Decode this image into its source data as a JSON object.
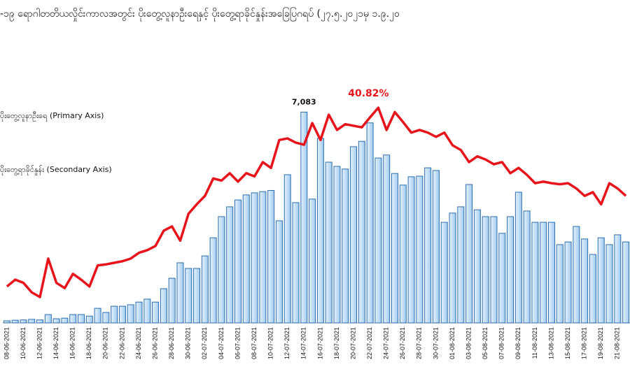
{
  "chart_data": {
    "type": "bar-line",
    "title": "-၁၉ ရောဂါတတိယလှိုင်းကာလအတွင်း ပိုးတွေ့လူနာဦးရေနှင့် ပိုးတွေ့ရာခိုင်နှုန်းအခြေပြဂရပ် (၂၇.၅.၂၀၂၁မှ ၁.၉.၂၀",
    "categories": [
      "08-06-2021",
      null,
      "10-06-2021",
      null,
      "12-06-2021",
      null,
      "14-06-2021",
      null,
      "16-06-2021",
      null,
      "18-06-2021",
      null,
      "20-06-2021",
      null,
      "22-06-2021",
      null,
      "24-06-2021",
      null,
      "26-06-2021",
      null,
      "28-06-2021",
      null,
      "30-06-2021",
      null,
      "02-07-2021",
      null,
      "04-07-2021",
      null,
      "06-07-2021",
      null,
      "08-07-2021",
      null,
      "10-07-2021",
      null,
      "12-07-2021",
      null,
      "14-07-2021",
      null,
      "16-07-2021",
      null,
      "18-07-2021",
      null,
      "20-07-2021",
      null,
      "22-07-2021",
      null,
      "24-07-2021",
      null,
      "26-07-2021",
      null,
      "28-07-2021",
      null,
      "30-07-2021",
      null,
      "01-08-2021",
      null,
      "03-08-2021",
      null,
      "05-08-2021",
      null,
      "07-08-2021",
      null,
      "09-08-2021",
      null,
      "11-08-2021",
      null,
      "13-08-2021",
      null,
      "15-08-2021",
      null,
      "17-08-2021",
      null,
      "19-08-2021",
      null,
      "21-08-2021",
      null
    ],
    "series": [
      {
        "name": "ပိုးတွေ့လူနာဦးရေ (Primary Axis)",
        "color": "#bcdcf4",
        "stroke": "#2a6db0",
        "values": [
          70,
          90,
          100,
          120,
          100,
          280,
          140,
          160,
          280,
          280,
          230,
          490,
          350,
          560,
          560,
          610,
          700,
          800,
          700,
          1150,
          1500,
          2020,
          1830,
          1830,
          2250,
          2860,
          3570,
          3900,
          4130,
          4300,
          4370,
          4410,
          4450,
          3430,
          4980,
          4040,
          7083,
          4160,
          6200,
          5400,
          5260,
          5170,
          5920,
          6100,
          6720,
          5540,
          5640,
          5020,
          4630,
          4910,
          4930,
          5210,
          5120,
          3380,
          3690,
          3900,
          4650,
          3800,
          3570,
          3570,
          3010,
          3570,
          4390,
          3760,
          3380,
          3380,
          3380,
          2630,
          2720,
          3240,
          2820,
          2300,
          2860,
          2630,
          2960,
          2720
        ],
        "value_labels": [
          null,
          null,
          null,
          null,
          null,
          null,
          null,
          null,
          null,
          null,
          null,
          null,
          null,
          null,
          null,
          null,
          null,
          null,
          null,
          null,
          null,
          null,
          null,
          null,
          null,
          null,
          null,
          null,
          null,
          null,
          null,
          null,
          null,
          null,
          null,
          null,
          "7,083",
          null,
          null,
          null,
          null,
          null,
          null,
          null,
          null,
          null,
          null,
          null,
          null,
          null,
          null,
          null,
          null,
          null,
          null,
          null,
          null,
          null,
          null,
          null,
          null,
          null,
          null,
          null,
          null,
          null,
          null,
          null,
          null,
          null,
          null,
          null,
          null,
          null,
          null,
          null
        ]
      },
      {
        "name": "ပိုးတွေ့ရာခိုင်နှုန်း (Secondary Axis)",
        "color": "#e8141b",
        "axis": "y2",
        "values": [
          6.9,
          8.2,
          7.6,
          5.8,
          4.9,
          12.2,
          7.6,
          6.6,
          9.3,
          8.2,
          6.9,
          10.9,
          11.1,
          11.4,
          11.7,
          12.2,
          13.3,
          13.8,
          14.6,
          17.5,
          18.3,
          15.6,
          20.7,
          22.5,
          24.1,
          27.4,
          27.0,
          28.4,
          26.8,
          28.4,
          27.8,
          30.5,
          29.4,
          34.7,
          35.0,
          34.2,
          33.8,
          37.9,
          34.7,
          39.5,
          36.6,
          37.7,
          37.4,
          37.1,
          39.0,
          40.82,
          36.6,
          40.0,
          38.1,
          36.1,
          36.6,
          36.1,
          35.3,
          36.1,
          33.7,
          32.8,
          30.5,
          31.6,
          31.0,
          30.1,
          30.5,
          28.4,
          29.4,
          28.1,
          26.5,
          26.8,
          26.5,
          26.3,
          26.5,
          25.5,
          24.1,
          24.8,
          22.5,
          26.5,
          25.5,
          24.1
        ],
        "value_labels": [
          null,
          null,
          null,
          null,
          null,
          null,
          null,
          null,
          null,
          null,
          null,
          null,
          null,
          null,
          null,
          null,
          null,
          null,
          null,
          null,
          null,
          null,
          null,
          null,
          null,
          null,
          null,
          null,
          null,
          null,
          null,
          null,
          null,
          null,
          null,
          null,
          null,
          null,
          null,
          null,
          null,
          null,
          null,
          null,
          null,
          "40.82%",
          null,
          null,
          null,
          null,
          null,
          null,
          null,
          null,
          null,
          null,
          null,
          null,
          null,
          null,
          null,
          null,
          null,
          null,
          null,
          null,
          null,
          null,
          null,
          null,
          null,
          null,
          null,
          null,
          null,
          null
        ]
      }
    ],
    "ylim": [
      0,
      8500
    ],
    "y2lim": [
      0,
      48
    ]
  }
}
